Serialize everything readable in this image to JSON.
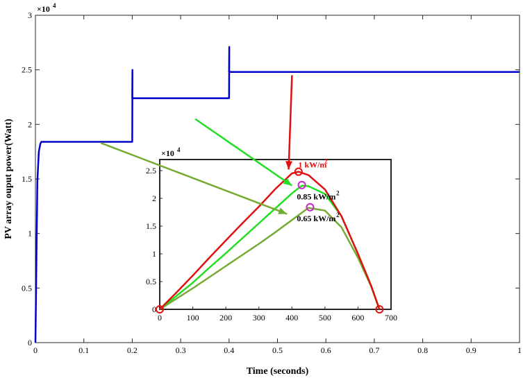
{
  "chart_data": [
    {
      "type": "line",
      "xlabel": "Time (seconds)",
      "ylabel": "PV array ouput power(Watt)",
      "xlim": [
        0,
        1
      ],
      "ylim": [
        0,
        30000
      ],
      "x_ticks": [
        "0",
        "0.1",
        "0.2",
        "0.3",
        "0.4",
        "0.5",
        "0.6",
        "0.7",
        "0.8",
        "0.9",
        "1"
      ],
      "y_ticks": [
        "0",
        "0.5",
        "1",
        "1.5",
        "2",
        "2.5",
        "3"
      ],
      "y_multiplier": "×10",
      "y_multiplier_exp": "4",
      "grid": false,
      "series": [
        {
          "color": "#0000cc",
          "x": [
            0,
            0.004,
            0.007,
            0.01,
            0.012,
            0.2,
            0.2,
            0.2005,
            0.2,
            0.201,
            0.4,
            0.4,
            0.4005,
            0.4,
            0.401,
            1.0
          ],
          "y": [
            0,
            14800,
            17500,
            18200,
            18400,
            18400,
            18400,
            25000,
            22400,
            22400,
            22400,
            22400,
            27100,
            24800,
            24800,
            24800
          ]
        }
      ]
    },
    {
      "type": "line",
      "xlim": [
        0,
        700
      ],
      "ylim": [
        0,
        27000
      ],
      "x_ticks": [
        "0",
        "100",
        "200",
        "300",
        "400",
        "500",
        "600",
        "700"
      ],
      "y_ticks": [
        "0",
        "0.5",
        "1",
        "1.5",
        "2",
        "2.5"
      ],
      "y_multiplier": "×10",
      "y_multiplier_exp": "4",
      "grid": false,
      "series": [
        {
          "label": "1 kW/m",
          "label_sup": "2",
          "color": "#e01010",
          "x": [
            0,
            50,
            100,
            150,
            200,
            250,
            300,
            350,
            400,
            420,
            450,
            500,
            550,
            600,
            640,
            665
          ],
          "y": [
            0,
            3000,
            6100,
            9300,
            12400,
            15500,
            18500,
            21700,
            24500,
            24800,
            24200,
            21600,
            16800,
            10000,
            4200,
            0
          ],
          "mpp": [
            420,
            24800
          ],
          "mpp_color": "#e01010"
        },
        {
          "label": "0.85 kW/m",
          "label_sup": "2",
          "color": "#22dd22",
          "x": [
            0,
            50,
            100,
            150,
            200,
            250,
            300,
            350,
            400,
            430,
            450,
            500,
            550,
            600,
            640,
            665
          ],
          "y": [
            0,
            2400,
            4800,
            7500,
            10100,
            12800,
            15500,
            18200,
            20900,
            22300,
            22200,
            20800,
            16800,
            10000,
            4200,
            0
          ],
          "mpp": [
            430,
            22400
          ],
          "mpp_color": "#cc22cc"
        },
        {
          "label": "0.65 kW/m",
          "label_sup": "2",
          "color": "#77aa33",
          "x": [
            0,
            50,
            100,
            150,
            200,
            250,
            300,
            350,
            400,
            450,
            500,
            550,
            600,
            640,
            665
          ],
          "y": [
            0,
            1900,
            3800,
            5800,
            7800,
            9800,
            11800,
            13900,
            16100,
            18300,
            17800,
            14800,
            9300,
            4100,
            0
          ],
          "mpp": [
            455,
            18400
          ],
          "mpp_color": "#cc22cc"
        }
      ],
      "endpoint_markers": [
        [
          0,
          0
        ],
        [
          665,
          0
        ]
      ],
      "endpoint_color": "#e01010"
    }
  ],
  "arrows": [
    {
      "color": "#e01010",
      "from_main": [
        0.53,
        24500
      ],
      "to_inset": [
        390,
        25200
      ]
    },
    {
      "color": "#22dd22",
      "from_main": [
        0.33,
        20500
      ],
      "to_inset": [
        400,
        22300
      ]
    },
    {
      "color": "#77aa33",
      "from_main": [
        0.135,
        18300
      ],
      "to_inset": [
        385,
        17200
      ]
    }
  ]
}
